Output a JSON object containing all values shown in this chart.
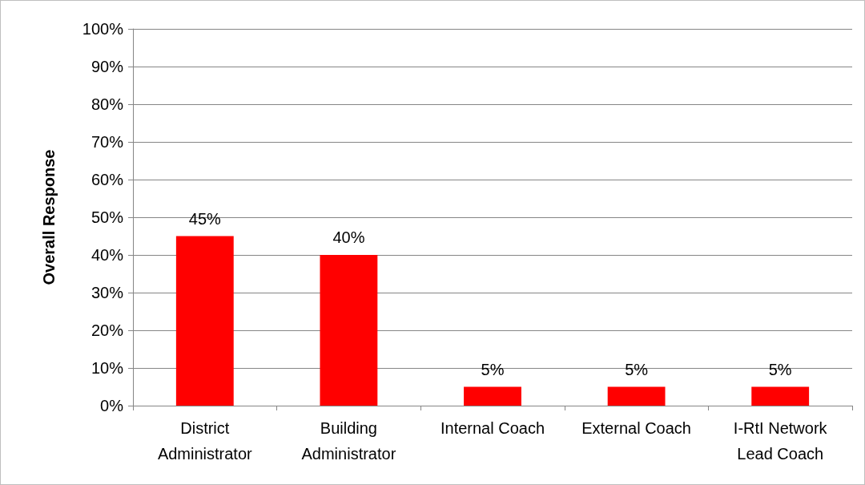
{
  "chart_data": {
    "type": "bar",
    "ylabel": "Overall Response",
    "categories": [
      "District\nAdministrator",
      "Building\nAdministrator",
      "Internal Coach",
      "External Coach",
      "I-RtI Network\nLead Coach"
    ],
    "values": [
      45,
      40,
      5,
      5,
      5
    ],
    "value_labels": [
      "45%",
      "40%",
      "5%",
      "5%",
      "5%"
    ],
    "color": "#ff0000",
    "ylim": [
      0,
      100
    ],
    "yticks": [
      {
        "value": 0,
        "label": "0%"
      },
      {
        "value": 10,
        "label": "10%"
      },
      {
        "value": 20,
        "label": "20%"
      },
      {
        "value": 30,
        "label": "30%"
      },
      {
        "value": 40,
        "label": "40%"
      },
      {
        "value": 50,
        "label": "50%"
      },
      {
        "value": 60,
        "label": "60%"
      },
      {
        "value": 70,
        "label": "70%"
      },
      {
        "value": 80,
        "label": "80%"
      },
      {
        "value": 90,
        "label": "90%"
      },
      {
        "value": 100,
        "label": "100%"
      }
    ],
    "grid": "y"
  }
}
